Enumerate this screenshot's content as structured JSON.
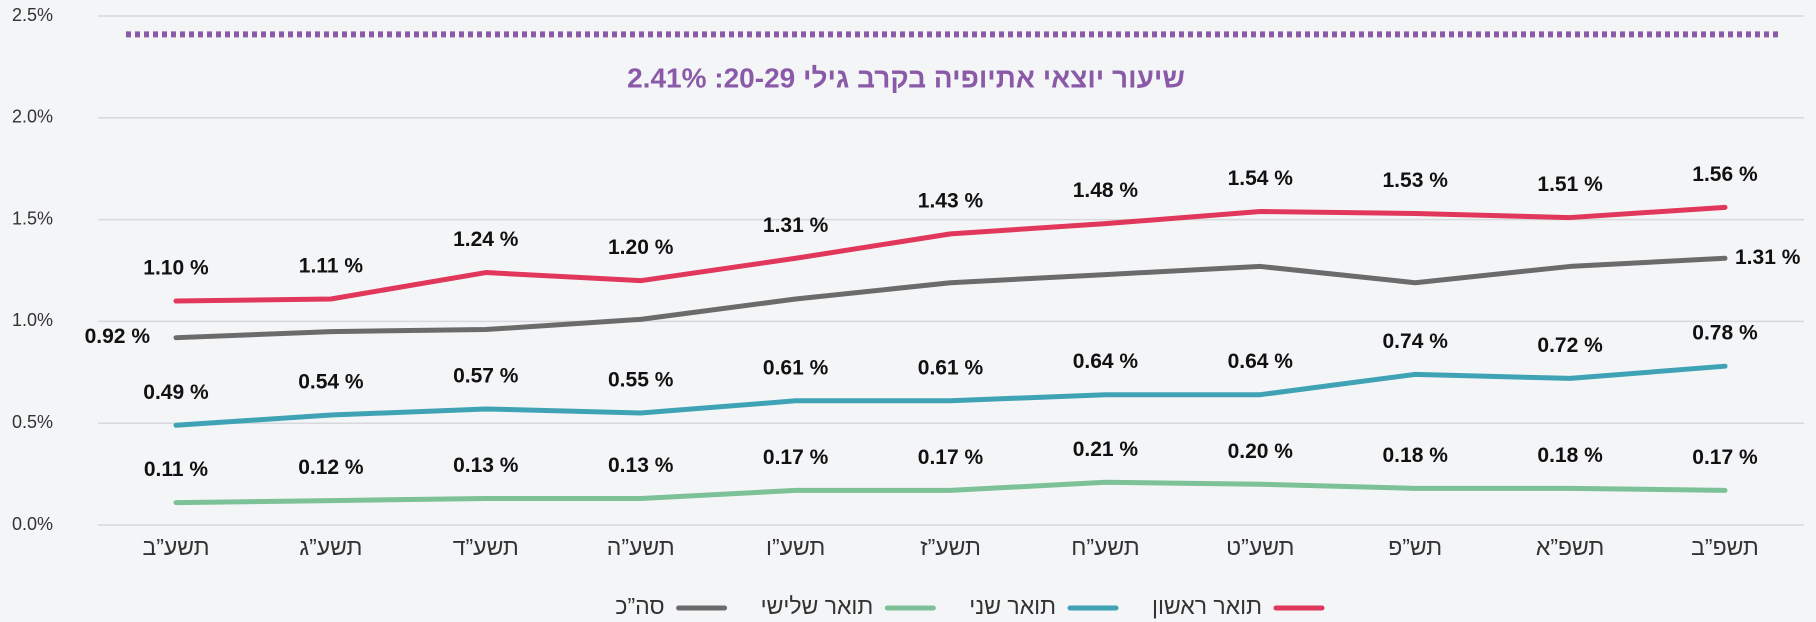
{
  "chart_data": {
    "type": "line",
    "categories": [
      "תשע”ב",
      "תשע”ג",
      "תשע”ד",
      "תשע”ה",
      "תשע”ו",
      "תשע”ז",
      "תשע”ח",
      "תשע”ט",
      "תש”פ",
      "תשפ”א",
      "תשפ”ב"
    ],
    "series": [
      {
        "name": "תואר ראשון",
        "color": "#e0375a",
        "values": [
          1.1,
          1.11,
          1.24,
          1.2,
          1.31,
          1.43,
          1.48,
          1.54,
          1.53,
          1.51,
          1.56
        ],
        "value_labels": [
          "1.10 %",
          "1.11 %",
          "1.24 %",
          "1.20 %",
          "1.31 %",
          "1.43 %",
          "1.48 %",
          "1.54 %",
          "1.53 %",
          "1.51 %",
          "1.56 %"
        ]
      },
      {
        "name": "תואר שני",
        "color": "#3fa3b5",
        "values": [
          0.49,
          0.54,
          0.57,
          0.55,
          0.61,
          0.61,
          0.64,
          0.64,
          0.74,
          0.72,
          0.78
        ],
        "value_labels": [
          "0.49 %",
          "0.54 %",
          "0.57 %",
          "0.55 %",
          "0.61 %",
          "0.61 %",
          "0.64 %",
          "0.64 %",
          "0.74 %",
          "0.72 %",
          "0.78 %"
        ]
      },
      {
        "name": "תואר שלישי",
        "color": "#7cc197",
        "values": [
          0.11,
          0.12,
          0.13,
          0.13,
          0.17,
          0.17,
          0.21,
          0.2,
          0.18,
          0.18,
          0.17
        ],
        "value_labels": [
          "0.11 %",
          "0.12 %",
          "0.13 %",
          "0.13 %",
          "0.17 %",
          "0.17 %",
          "0.21 %",
          "0.20 %",
          "0.18 %",
          "0.18 %",
          "0.17 %"
        ]
      },
      {
        "name": "סה”כ",
        "color": "#6b6b6b",
        "values": [
          0.92,
          0.95,
          0.96,
          1.01,
          1.11,
          1.19,
          1.23,
          1.27,
          1.19,
          1.27,
          1.31
        ],
        "value_labels": [
          "0.92 %",
          null,
          null,
          null,
          null,
          null,
          null,
          null,
          null,
          null,
          "1.31 %"
        ]
      }
    ],
    "ylim": [
      0,
      2.5
    ],
    "yticks": [
      {
        "value": 0,
        "label": "0.0%"
      },
      {
        "value": 0.5,
        "label": "0.5%"
      },
      {
        "value": 1,
        "label": "1.0%"
      },
      {
        "value": 1.5,
        "label": "1.5%"
      },
      {
        "value": 2,
        "label": "2.0%"
      },
      {
        "value": 2.5,
        "label": "2.5%"
      }
    ],
    "grid": true,
    "reference_line": {
      "value": 2.41,
      "label": "שיעור יוצאי אתיופיה בקרב גילי 20-29: 2.41%",
      "color": "#8a5aa8"
    },
    "legend": "bottom"
  }
}
